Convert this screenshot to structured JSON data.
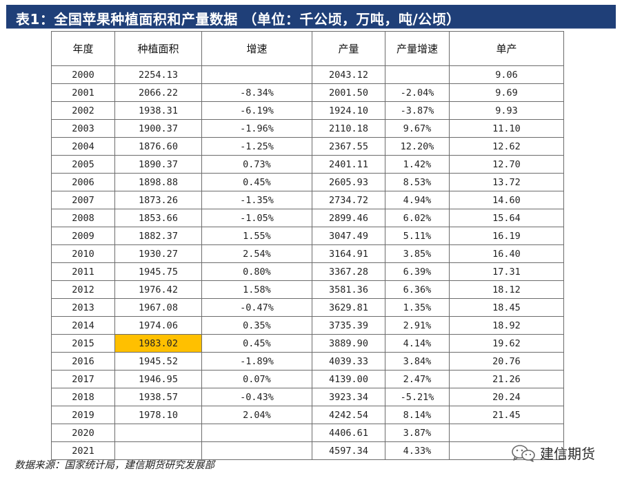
{
  "title": "表1：全国苹果种植面积和产量数据  （单位：千公顷，万吨，吨/公顷）",
  "table": {
    "headers": [
      "年度",
      "种植面积",
      "增速",
      "产量",
      "产量增速",
      "单产"
    ],
    "rows": [
      [
        "2000",
        "2254.13",
        "",
        "2043.12",
        "",
        "9.06"
      ],
      [
        "2001",
        "2066.22",
        "-8.34%",
        "2001.50",
        "-2.04%",
        "9.69"
      ],
      [
        "2002",
        "1938.31",
        "-6.19%",
        "1924.10",
        "-3.87%",
        "9.93"
      ],
      [
        "2003",
        "1900.37",
        "-1.96%",
        "2110.18",
        "9.67%",
        "11.10"
      ],
      [
        "2004",
        "1876.60",
        "-1.25%",
        "2367.55",
        "12.20%",
        "12.62"
      ],
      [
        "2005",
        "1890.37",
        "0.73%",
        "2401.11",
        "1.42%",
        "12.70"
      ],
      [
        "2006",
        "1898.88",
        "0.45%",
        "2605.93",
        "8.53%",
        "13.72"
      ],
      [
        "2007",
        "1873.26",
        "-1.35%",
        "2734.72",
        "4.94%",
        "14.60"
      ],
      [
        "2008",
        "1853.66",
        "-1.05%",
        "2899.46",
        "6.02%",
        "15.64"
      ],
      [
        "2009",
        "1882.37",
        "1.55%",
        "3047.49",
        "5.11%",
        "16.19"
      ],
      [
        "2010",
        "1930.27",
        "2.54%",
        "3164.91",
        "3.85%",
        "16.40"
      ],
      [
        "2011",
        "1945.75",
        "0.80%",
        "3367.28",
        "6.39%",
        "17.31"
      ],
      [
        "2012",
        "1976.42",
        "1.58%",
        "3581.36",
        "6.36%",
        "18.12"
      ],
      [
        "2013",
        "1967.08",
        "-0.47%",
        "3629.81",
        "1.35%",
        "18.45"
      ],
      [
        "2014",
        "1974.06",
        "0.35%",
        "3735.39",
        "2.91%",
        "18.92"
      ],
      [
        "2015",
        "1983.02",
        "0.45%",
        "3889.90",
        "4.14%",
        "19.62"
      ],
      [
        "2016",
        "1945.52",
        "-1.89%",
        "4039.33",
        "3.84%",
        "20.76"
      ],
      [
        "2017",
        "1946.95",
        "0.07%",
        "4139.00",
        "2.47%",
        "21.26"
      ],
      [
        "2018",
        "1938.57",
        "-0.43%",
        "3923.34",
        "-5.21%",
        "20.24"
      ],
      [
        "2019",
        "1978.10",
        "2.04%",
        "4242.54",
        "8.14%",
        "21.45"
      ],
      [
        "2020",
        "",
        "",
        "4406.61",
        "3.87%",
        ""
      ],
      [
        "2021",
        "",
        "",
        "4597.34",
        "4.33%",
        ""
      ]
    ],
    "highlight_cell": {
      "row": 15,
      "col": 1,
      "color": "#ffc000"
    }
  },
  "footer_source": "数据来源：国家统计局，建信期货研究发展部",
  "brand": {
    "text": "建信期货",
    "icon": "wechat-icon"
  },
  "colors": {
    "title_bg": "#1f3f78",
    "title_text": "#ffffff",
    "highlight": "#ffc000",
    "grid": "#6b6b6b"
  }
}
